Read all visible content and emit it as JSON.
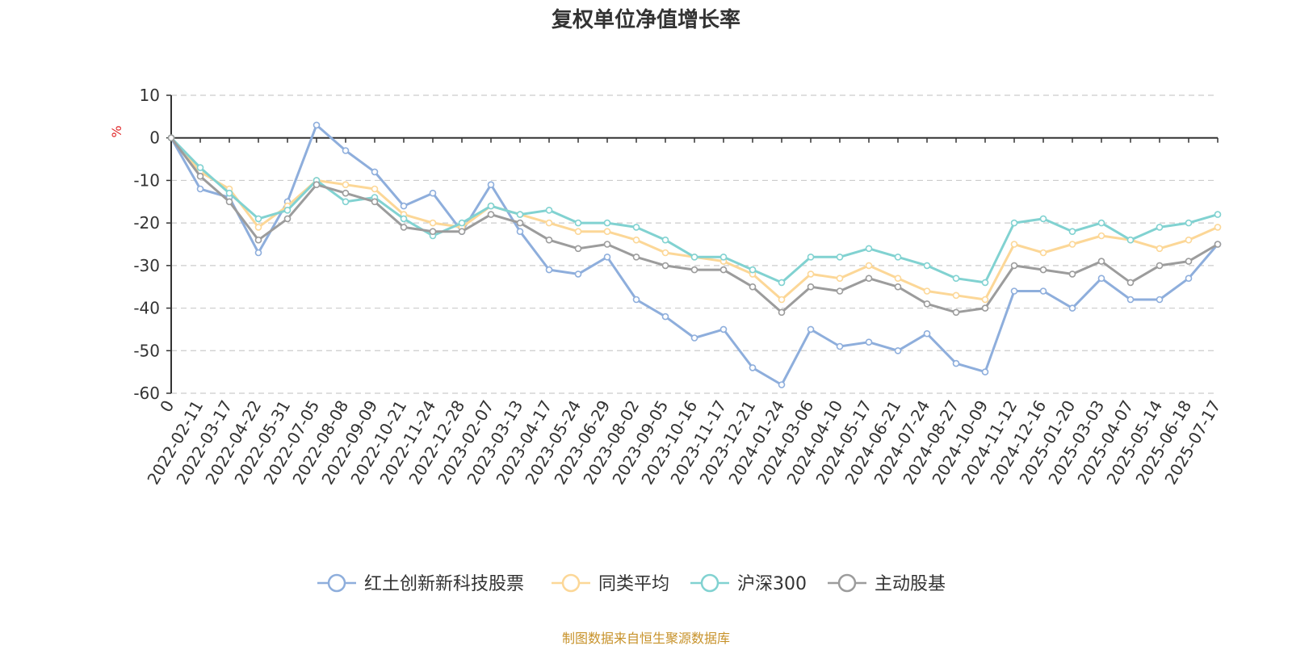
{
  "chart_data": {
    "type": "line",
    "title": "复权单位净值增长率",
    "ylabel": "%",
    "ylim": [
      -60,
      10
    ],
    "y_ticks": [
      10,
      0,
      -10,
      -20,
      -30,
      -40,
      -50,
      -60
    ],
    "grid": true,
    "legend_position": "bottom",
    "x_tick_labels": [
      "0",
      "2022-02-11",
      "2022-03-17",
      "2022-04-22",
      "2022-05-31",
      "2022-07-05",
      "2022-08-08",
      "2022-09-09",
      "2022-10-21",
      "2022-11-24",
      "2022-12-28",
      "2023-02-07",
      "2023-03-13",
      "2023-04-17",
      "2023-05-24",
      "2023-06-29",
      "2023-08-02",
      "2023-09-05",
      "2023-10-16",
      "2023-11-17",
      "2023-12-21",
      "2024-01-24",
      "2024-03-06",
      "2024-04-10",
      "2024-05-17",
      "2024-06-21",
      "2024-07-24",
      "2024-08-27",
      "2024-10-09",
      "2024-11-12",
      "2024-12-16",
      "2025-01-20",
      "2025-03-03",
      "2025-04-07",
      "2025-05-14",
      "2025-06-18",
      "2025-07-17"
    ],
    "x": [
      "0",
      "2022-02-11",
      "2022-03-17",
      "2022-04-22",
      "2022-05-31",
      "2022-07-05",
      "2022-08-08",
      "2022-09-09",
      "2022-10-21",
      "2022-11-24",
      "2022-12-28",
      "2023-02-07",
      "2023-03-13",
      "2023-04-17",
      "2023-05-24",
      "2023-06-29",
      "2023-08-02",
      "2023-09-05",
      "2023-10-16",
      "2023-11-17",
      "2023-12-21",
      "2024-01-24",
      "2024-03-06",
      "2024-04-10",
      "2024-05-17",
      "2024-06-21",
      "2024-07-24",
      "2024-08-27",
      "2024-10-09",
      "2024-11-12",
      "2024-12-16",
      "2025-01-20",
      "2025-03-03",
      "2025-04-07",
      "2025-05-14",
      "2025-06-18",
      "2025-07-17"
    ],
    "series": [
      {
        "name": "红土创新新科技股票",
        "color": "#8eaedc",
        "values": [
          0,
          -12,
          -14,
          -27,
          -15,
          3,
          -3,
          -8,
          -16,
          -13,
          -22,
          -11,
          -22,
          -31,
          -32,
          -28,
          -38,
          -42,
          -47,
          -45,
          -54,
          -58,
          -45,
          -49,
          -48,
          -50,
          -46,
          -53,
          -55,
          -36,
          -36,
          -40,
          -33,
          -38,
          -38,
          -33,
          -25
        ]
      },
      {
        "name": "同类平均",
        "color": "#fcd797",
        "values": [
          0,
          -8,
          -12,
          -21,
          -16,
          -10,
          -11,
          -12,
          -18,
          -20,
          -21,
          -16,
          -18,
          -20,
          -22,
          -22,
          -24,
          -27,
          -28,
          -29,
          -32,
          -38,
          -32,
          -33,
          -30,
          -33,
          -36,
          -37,
          -38,
          -25,
          -27,
          -25,
          -23,
          -24,
          -26,
          -24,
          -21
        ]
      },
      {
        "name": "沪深300",
        "color": "#81d2d1",
        "values": [
          0,
          -7,
          -13,
          -19,
          -17,
          -10,
          -15,
          -14,
          -19,
          -23,
          -20,
          -16,
          -18,
          -17,
          -20,
          -20,
          -21,
          -24,
          -28,
          -28,
          -31,
          -34,
          -28,
          -28,
          -26,
          -28,
          -30,
          -33,
          -34,
          -20,
          -19,
          -22,
          -20,
          -24,
          -21,
          -20,
          -18
        ]
      },
      {
        "name": "主动股基",
        "color": "#9c9c9c",
        "values": [
          0,
          -9,
          -15,
          -24,
          -19,
          -11,
          -13,
          -15,
          -21,
          -22,
          -22,
          -18,
          -20,
          -24,
          -26,
          -25,
          -28,
          -30,
          -31,
          -31,
          -35,
          -41,
          -35,
          -36,
          -33,
          -35,
          -39,
          -41,
          -40,
          -30,
          -31,
          -32,
          -29,
          -34,
          -30,
          -29,
          -25
        ]
      }
    ]
  },
  "footer": {
    "source": "制图数据来自恒生聚源数据库"
  }
}
